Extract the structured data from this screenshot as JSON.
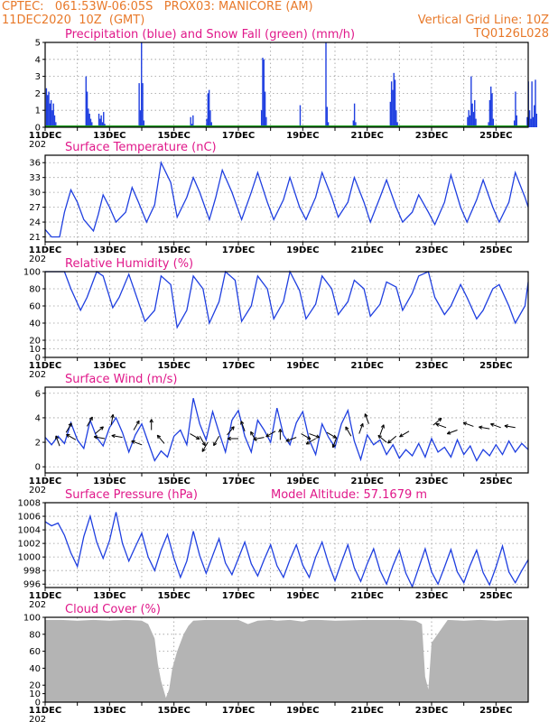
{
  "header": {
    "station": "CPTEC:   061:53W-06:05S   PROX03: MANICORE (AM)",
    "run": "11DEC2020  10Z  (GMT)",
    "grid_note": "Vertical Grid Line: 10Z",
    "code": "TQ0126L028"
  },
  "colors": {
    "header": "#e8792a",
    "title": "#e0188a",
    "series": "#1f3fe0",
    "snow": "#1a9a1a",
    "cloud": "#b4b4b4"
  },
  "x_dates": [
    "11DEC",
    "13DEC",
    "15DEC",
    "17DEC",
    "19DEC",
    "21DEC",
    "23DEC",
    "25DEC"
  ],
  "x_cut_label": "202",
  "chart_data": [
    {
      "type": "bar",
      "title": "Precipitation (blue) and Snow Fall (green) (mm/h)",
      "ylim": [
        0,
        5
      ],
      "yticks": [
        0,
        1,
        2,
        3,
        4,
        5
      ],
      "series": [
        {
          "name": "Precipitation",
          "events": [
            {
              "day": 0.02,
              "values": [
                2.3,
                1.9,
                2.1,
                1.4,
                1.6,
                1.0,
                1.4,
                0.7,
                0.3
              ]
            },
            {
              "day": 1.25,
              "values": [
                3.0,
                2.1,
                1.1,
                0.8,
                0.5,
                0.3
              ]
            },
            {
              "day": 1.65,
              "values": [
                0.8,
                0.5,
                0.7,
                0.3,
                0.9,
                0.2
              ]
            },
            {
              "day": 2.9,
              "values": [
                2.6,
                1.0,
                5.0,
                2.6,
                0.4
              ]
            },
            {
              "day": 4.5,
              "values": [
                0.6,
                0.2,
                0.7
              ]
            },
            {
              "day": 5.0,
              "values": [
                0.5,
                2.0,
                2.2,
                1.0,
                0.3
              ]
            },
            {
              "day": 6.7,
              "values": [
                1.0,
                4.1,
                4.0,
                2.1,
                0.6
              ]
            },
            {
              "day": 7.9,
              "values": [
                1.3
              ]
            },
            {
              "day": 8.7,
              "values": [
                5.0,
                1.2,
                0.3
              ]
            },
            {
              "day": 9.55,
              "values": [
                0.4,
                1.4,
                0.3
              ]
            },
            {
              "day": 10.7,
              "values": [
                1.5,
                2.7,
                2.2,
                3.2,
                2.8,
                1.0,
                0.3
              ]
            },
            {
              "day": 13.1,
              "values": [
                0.6,
                1.0,
                0.7,
                3.0,
                1.4,
                0.9,
                1.6,
                0.5
              ]
            },
            {
              "day": 13.75,
              "values": [
                0.3,
                1.6,
                2.4,
                2.0,
                0.5
              ]
            },
            {
              "day": 14.55,
              "values": [
                0.4,
                2.1,
                0.7
              ]
            },
            {
              "day": 14.95,
              "values": [
                0.6,
                2.7,
                1.0,
                0.5,
                2.7,
                0.6,
                1.3,
                2.8,
                0.8
              ]
            }
          ]
        },
        {
          "name": "Snow Fall",
          "values": [
            0
          ]
        }
      ]
    },
    {
      "type": "line",
      "title": "Surface Temperature (nC)",
      "ylim": [
        20,
        37.5
      ],
      "yticks": [
        21,
        24,
        27,
        30,
        33,
        36
      ],
      "x": [
        0,
        0.2,
        0.45,
        0.6,
        0.8,
        1.0,
        1.2,
        1.5,
        1.65,
        1.8,
        2.0,
        2.2,
        2.5,
        2.7,
        2.9,
        3.15,
        3.4,
        3.6,
        3.9,
        4.1,
        4.4,
        4.6,
        4.8,
        5.1,
        5.3,
        5.5,
        5.8,
        6.1,
        6.4,
        6.6,
        6.9,
        7.1,
        7.4,
        7.6,
        7.9,
        8.1,
        8.4,
        8.6,
        8.9,
        9.1,
        9.4,
        9.6,
        9.9,
        10.1,
        10.4,
        10.6,
        10.9,
        11.1,
        11.4,
        11.6,
        11.9,
        12.1,
        12.4,
        12.6,
        12.9,
        13.1,
        13.4,
        13.6,
        13.9,
        14.1,
        14.4,
        14.6,
        14.9,
        15.0
      ],
      "y": [
        22.5,
        21.0,
        21.0,
        26.0,
        30.5,
        28.0,
        24.5,
        22.2,
        25.5,
        29.5,
        27.0,
        24.0,
        26.0,
        31.0,
        28.0,
        24.0,
        27.5,
        36.0,
        32.0,
        25.0,
        29.0,
        33.0,
        30.0,
        24.5,
        29.0,
        34.5,
        30.0,
        24.5,
        30.0,
        34.0,
        28.0,
        24.5,
        28.5,
        33.0,
        27.0,
        24.5,
        29.0,
        34.0,
        29.0,
        25.0,
        28.0,
        33.0,
        28.0,
        24.0,
        29.0,
        32.5,
        27.0,
        24.0,
        26.0,
        29.5,
        26.0,
        23.5,
        28.0,
        33.5,
        27.0,
        24.0,
        28.5,
        32.5,
        27.0,
        24.0,
        28.0,
        34.0,
        29.0,
        27.0
      ]
    },
    {
      "type": "line",
      "title": "Relative Humidity (%)",
      "ylim": [
        0,
        100
      ],
      "yticks": [
        0,
        10,
        20,
        40,
        60,
        80,
        100
      ],
      "x": [
        0,
        0.3,
        0.6,
        0.8,
        1.1,
        1.3,
        1.6,
        1.8,
        2.1,
        2.3,
        2.6,
        2.8,
        3.1,
        3.4,
        3.6,
        3.9,
        4.1,
        4.4,
        4.6,
        4.9,
        5.1,
        5.4,
        5.6,
        5.9,
        6.1,
        6.4,
        6.6,
        6.9,
        7.1,
        7.4,
        7.6,
        7.9,
        8.1,
        8.4,
        8.6,
        8.9,
        9.1,
        9.4,
        9.6,
        9.9,
        10.1,
        10.4,
        10.6,
        10.9,
        11.1,
        11.4,
        11.6,
        11.9,
        12.1,
        12.4,
        12.6,
        12.9,
        13.1,
        13.4,
        13.6,
        13.9,
        14.1,
        14.4,
        14.6,
        14.9,
        15.0
      ],
      "y": [
        100,
        100,
        100,
        80,
        55,
        70,
        100,
        95,
        58,
        70,
        97,
        75,
        42,
        55,
        95,
        85,
        35,
        55,
        95,
        80,
        40,
        65,
        100,
        90,
        42,
        60,
        95,
        80,
        45,
        65,
        100,
        78,
        45,
        62,
        95,
        80,
        50,
        65,
        90,
        80,
        48,
        62,
        88,
        82,
        55,
        75,
        95,
        100,
        70,
        50,
        60,
        85,
        70,
        45,
        55,
        80,
        85,
        60,
        40,
        60,
        88
      ]
    },
    {
      "type": "line",
      "title": "Surface Wind (m/s)",
      "ylim": [
        -0.5,
        6.5
      ],
      "yticks": [
        0,
        2,
        4,
        6
      ],
      "x": [
        0,
        0.2,
        0.4,
        0.6,
        0.8,
        1.0,
        1.2,
        1.4,
        1.6,
        1.8,
        2.0,
        2.2,
        2.4,
        2.6,
        2.8,
        3.0,
        3.2,
        3.4,
        3.6,
        3.8,
        4.0,
        4.2,
        4.4,
        4.6,
        4.8,
        5.0,
        5.2,
        5.4,
        5.6,
        5.8,
        6.0,
        6.2,
        6.4,
        6.6,
        6.8,
        7.0,
        7.2,
        7.4,
        7.6,
        7.8,
        8.0,
        8.2,
        8.4,
        8.6,
        8.8,
        9.0,
        9.2,
        9.4,
        9.6,
        9.8,
        10.0,
        10.2,
        10.4,
        10.6,
        10.8,
        11.0,
        11.2,
        11.4,
        11.6,
        11.8,
        12.0,
        12.2,
        12.4,
        12.6,
        12.8,
        13.0,
        13.2,
        13.4,
        13.6,
        13.8,
        14.0,
        14.2,
        14.4,
        14.6,
        14.8,
        15.0
      ],
      "y": [
        2.4,
        1.8,
        2.5,
        1.9,
        3.6,
        2.2,
        1.5,
        3.8,
        2.4,
        1.7,
        3.2,
        4.0,
        2.8,
        1.2,
        2.6,
        3.5,
        2.0,
        0.5,
        1.3,
        0.8,
        2.5,
        3.0,
        1.8,
        5.6,
        3.5,
        2.2,
        4.5,
        2.8,
        1.2,
        3.8,
        4.6,
        2.5,
        1.2,
        3.8,
        3.0,
        2.0,
        4.8,
        2.6,
        1.8,
        3.6,
        4.5,
        2.2,
        1.0,
        3.5,
        2.4,
        1.6,
        3.5,
        4.6,
        2.1,
        0.6,
        2.6,
        1.8,
        2.2,
        1.0,
        1.8,
        0.7,
        1.4,
        0.9,
        1.9,
        0.8,
        2.3,
        1.2,
        1.6,
        0.8,
        2.2,
        1.0,
        1.7,
        0.5,
        1.4,
        0.9,
        1.8,
        1.0,
        2.1,
        1.2,
        1.9,
        1.4
      ],
      "arrows": [
        {
          "day": 0.45,
          "y": 1.7,
          "angle": -110
        },
        {
          "day": 0.65,
          "y": 2.8,
          "angle": -60
        },
        {
          "day": 0.95,
          "y": 2.2,
          "angle": -150
        },
        {
          "day": 1.3,
          "y": 3.3,
          "angle": -60
        },
        {
          "day": 1.55,
          "y": 2.7,
          "angle": -40
        },
        {
          "day": 1.85,
          "y": 2.3,
          "angle": 190
        },
        {
          "day": 2.05,
          "y": 3.4,
          "angle": -80
        },
        {
          "day": 2.4,
          "y": 2.4,
          "angle": 190
        },
        {
          "day": 2.75,
          "y": 3.0,
          "angle": -60
        },
        {
          "day": 3.0,
          "y": 1.8,
          "angle": 200
        },
        {
          "day": 3.3,
          "y": 3.0,
          "angle": -90
        },
        {
          "day": 3.7,
          "y": 1.9,
          "angle": -130
        },
        {
          "day": 4.5,
          "y": 2.7,
          "angle": 30
        },
        {
          "day": 4.8,
          "y": 2.5,
          "angle": 60
        },
        {
          "day": 5.05,
          "y": 2.0,
          "angle": 120
        },
        {
          "day": 5.4,
          "y": 2.5,
          "angle": 120
        },
        {
          "day": 5.65,
          "y": 2.6,
          "angle": -50
        },
        {
          "day": 6.0,
          "y": 2.3,
          "angle": 180
        },
        {
          "day": 6.2,
          "y": 2.9,
          "angle": -110
        },
        {
          "day": 6.55,
          "y": 2.1,
          "angle": -120
        },
        {
          "day": 6.8,
          "y": 2.4,
          "angle": 170
        },
        {
          "day": 7.15,
          "y": 2.9,
          "angle": 150
        },
        {
          "day": 7.3,
          "y": 2.2,
          "angle": -90
        },
        {
          "day": 7.8,
          "y": 2.4,
          "angle": 160
        },
        {
          "day": 7.95,
          "y": 2.7,
          "angle": 30
        },
        {
          "day": 8.2,
          "y": 2.7,
          "angle": 20
        },
        {
          "day": 8.4,
          "y": 2.3,
          "angle": 150
        },
        {
          "day": 8.75,
          "y": 2.8,
          "angle": 30
        },
        {
          "day": 9.05,
          "y": 2.4,
          "angle": 110
        },
        {
          "day": 9.5,
          "y": 2.5,
          "angle": -120
        },
        {
          "day": 9.75,
          "y": 2.7,
          "angle": -70
        },
        {
          "day": 10.05,
          "y": 3.5,
          "angle": -110
        },
        {
          "day": 10.4,
          "y": 2.6,
          "angle": -70
        },
        {
          "day": 10.6,
          "y": 2.0,
          "angle": -140
        },
        {
          "day": 10.9,
          "y": 2.5,
          "angle": 140
        },
        {
          "day": 11.3,
          "y": 2.9,
          "angle": 150
        },
        {
          "day": 12.05,
          "y": 3.4,
          "angle": -40
        },
        {
          "day": 12.45,
          "y": 3.2,
          "angle": 200
        },
        {
          "day": 12.8,
          "y": 3.0,
          "angle": 160
        },
        {
          "day": 13.3,
          "y": 3.3,
          "angle": 200
        },
        {
          "day": 13.8,
          "y": 3.1,
          "angle": 190
        },
        {
          "day": 14.15,
          "y": 3.2,
          "angle": 200
        },
        {
          "day": 14.6,
          "y": 3.2,
          "angle": 190
        }
      ]
    },
    {
      "type": "line",
      "title": "Surface Pressure (hPa)",
      "subtitle": "Model Altitude: 57.1679 m",
      "ylim": [
        995.5,
        1008
      ],
      "yticks": [
        996,
        998,
        1000,
        1002,
        1004,
        1006,
        1008
      ],
      "x": [
        0,
        0.2,
        0.4,
        0.6,
        0.8,
        1.0,
        1.2,
        1.4,
        1.6,
        1.8,
        2.0,
        2.2,
        2.4,
        2.6,
        2.8,
        3.0,
        3.2,
        3.4,
        3.6,
        3.8,
        4.0,
        4.2,
        4.4,
        4.6,
        4.8,
        5.0,
        5.2,
        5.4,
        5.6,
        5.8,
        6.0,
        6.2,
        6.4,
        6.6,
        6.8,
        7.0,
        7.2,
        7.4,
        7.6,
        7.8,
        8.0,
        8.2,
        8.4,
        8.6,
        8.8,
        9.0,
        9.2,
        9.4,
        9.6,
        9.8,
        10.0,
        10.2,
        10.4,
        10.6,
        10.8,
        11.0,
        11.2,
        11.4,
        11.6,
        11.8,
        12.0,
        12.2,
        12.4,
        12.6,
        12.8,
        13.0,
        13.2,
        13.4,
        13.6,
        13.8,
        14.0,
        14.2,
        14.4,
        14.6,
        14.8,
        15.0
      ],
      "y": [
        1005.2,
        1004.6,
        1005.0,
        1003.2,
        1000.6,
        998.6,
        1003.0,
        1006.0,
        1002.2,
        999.8,
        1002.4,
        1006.6,
        1002.0,
        999.4,
        1001.5,
        1003.5,
        1000.0,
        998.0,
        1001.0,
        1003.3,
        999.8,
        997.0,
        999.4,
        1003.8,
        1000.2,
        997.6,
        1000.2,
        1002.7,
        999.1,
        997.4,
        999.8,
        1002.2,
        999.0,
        997.2,
        999.6,
        1001.8,
        998.7,
        997.0,
        999.6,
        1001.8,
        998.8,
        997.0,
        1000.0,
        1002.2,
        999.0,
        996.5,
        999.2,
        1001.8,
        998.4,
        996.4,
        999.0,
        1001.2,
        998.0,
        996.0,
        998.7,
        1001.0,
        997.6,
        995.6,
        998.4,
        1001.2,
        997.8,
        996.0,
        998.5,
        1001.1,
        997.8,
        996.2,
        998.8,
        1001.0,
        997.7,
        995.9,
        998.5,
        1001.6,
        997.8,
        996.2,
        998.0,
        999.6
      ]
    },
    {
      "type": "area",
      "title": "Cloud Cover (%)",
      "ylim": [
        0,
        100
      ],
      "yticks": [
        0,
        10,
        20,
        40,
        60,
        80,
        100
      ],
      "x": [
        0,
        0.5,
        1.0,
        1.5,
        2.0,
        2.5,
        3.0,
        3.2,
        3.4,
        3.5,
        3.6,
        3.75,
        3.85,
        3.95,
        4.1,
        4.3,
        4.45,
        4.6,
        5.0,
        6.0,
        6.3,
        6.6,
        7.0,
        7.2,
        7.6,
        8.0,
        8.2,
        8.5,
        9.0,
        10.0,
        11.0,
        11.5,
        11.7,
        11.8,
        11.9,
        12.0,
        12.5,
        13.0,
        13.5,
        14.0,
        14.5,
        15.0
      ],
      "y": [
        97,
        97,
        96,
        97,
        96,
        97,
        96,
        92,
        75,
        45,
        25,
        5,
        15,
        40,
        60,
        80,
        90,
        96,
        97,
        97,
        92,
        96,
        97,
        96,
        97,
        95,
        97,
        97,
        96,
        97,
        97,
        96,
        92,
        30,
        15,
        70,
        97,
        96,
        97,
        96,
        97,
        97
      ]
    }
  ]
}
